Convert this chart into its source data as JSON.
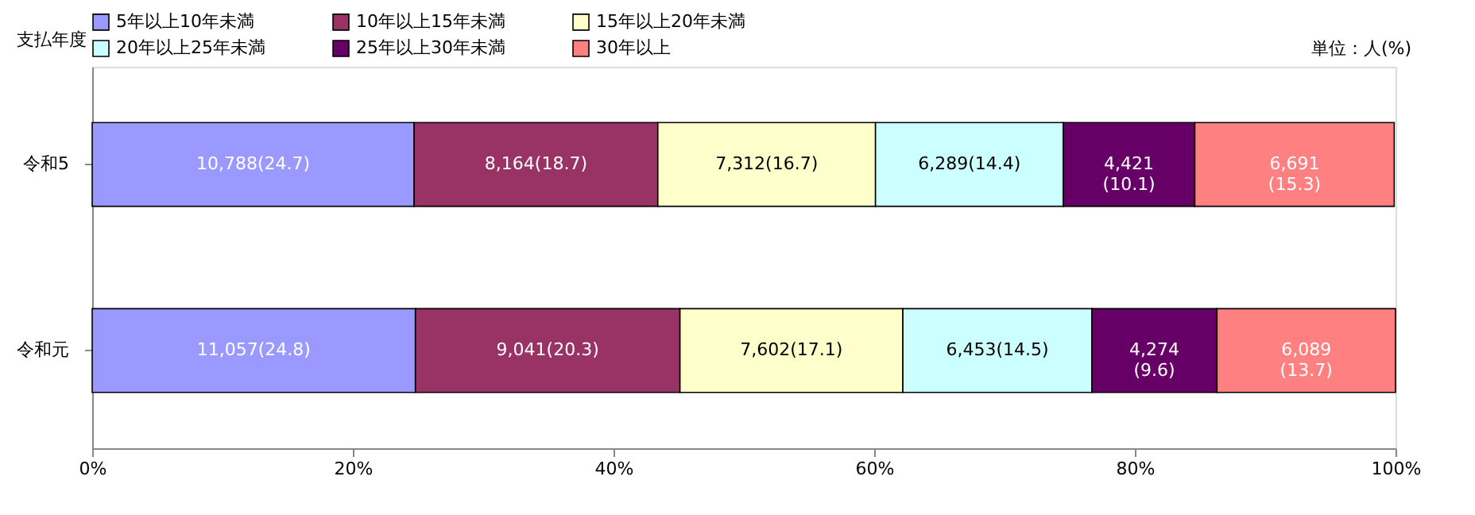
{
  "chart_data": {
    "type": "bar",
    "orientation": "horizontal",
    "stacked": true,
    "ylabel": "支払年度",
    "annotations": [
      "単位：人(%)"
    ],
    "categories": [
      "令和5",
      "令和元"
    ],
    "series": [
      {
        "name": "5年以上10年未満",
        "color": "#9999ff",
        "values": [
          24.7,
          24.8
        ],
        "value_labels": [
          "10,788(24.7)",
          "11,057(24.8)"
        ]
      },
      {
        "name": "10年以上15年未満",
        "color": "#993366",
        "values": [
          18.7,
          20.3
        ],
        "value_labels": [
          "8,164(18.7)",
          "9,041(20.3)"
        ]
      },
      {
        "name": "15年以上20年未満",
        "color": "#ffffcc",
        "values": [
          16.7,
          17.1
        ],
        "value_labels": [
          "7,312(16.7)",
          "7,602(17.1)"
        ]
      },
      {
        "name": "20年以上25年未満",
        "color": "#ccffff",
        "values": [
          14.4,
          14.5
        ],
        "value_labels": [
          "6,289(14.4)",
          "6,453(14.5)"
        ]
      },
      {
        "name": "25年以上30年未満",
        "color": "#660066",
        "values": [
          10.1,
          9.6
        ],
        "value_labels": [
          "4,421\n(10.1)",
          "4,274\n(9.6)"
        ]
      },
      {
        "name": "30年以上",
        "color": "#ff8080",
        "values": [
          15.3,
          13.7
        ],
        "value_labels": [
          "6,691\n(15.3)",
          "6,089\n(13.7)"
        ]
      }
    ],
    "xlim": [
      0,
      100
    ],
    "xticks": [
      {
        "value": 0,
        "label": "0%"
      },
      {
        "value": 20,
        "label": "20%"
      },
      {
        "value": 40,
        "label": "40%"
      },
      {
        "value": 60,
        "label": "60%"
      },
      {
        "value": 80,
        "label": "80%"
      },
      {
        "value": 100,
        "label": "100%"
      }
    ],
    "grid": false,
    "legend": "top"
  }
}
